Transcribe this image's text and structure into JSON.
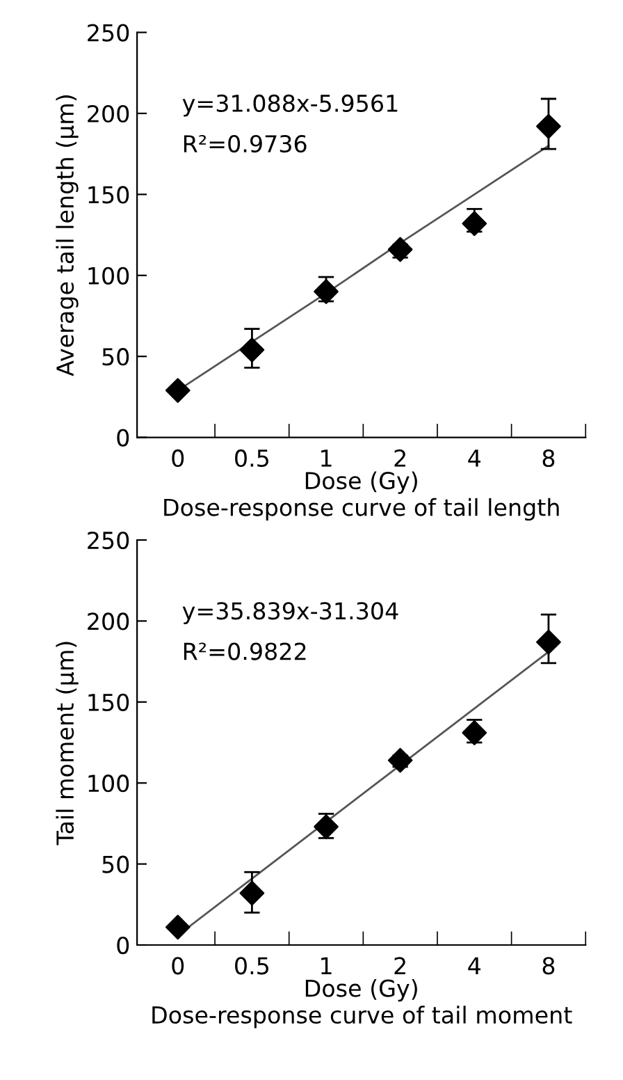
{
  "chart_data": [
    {
      "type": "scatter",
      "title": "Dose-response curve of tail length",
      "xlabel": "Dose (Gy)",
      "ylabel": "Average tail length (µm)",
      "categories": [
        "0",
        "0.5",
        "1",
        "2",
        "4",
        "8"
      ],
      "ylim": [
        0,
        250
      ],
      "yticks": [
        0,
        50,
        100,
        150,
        200,
        250
      ],
      "grid": false,
      "legend": false,
      "annotations": [
        "y=31.088x-5.9561",
        "R²=0.9736"
      ],
      "series": [
        {
          "type": "line",
          "color": "#555555",
          "line_style": "solid",
          "marker": "none",
          "values": [
            29,
            59,
            89,
            120,
            150,
            180
          ]
        },
        {
          "color": "#000000",
          "marker": "diamond",
          "values": [
            29,
            54,
            90,
            116,
            132,
            192
          ],
          "errors": [
            null,
            [
              43,
              67
            ],
            [
              84,
              99
            ],
            [
              111,
              119
            ],
            [
              127,
              141
            ],
            [
              178,
              209
            ]
          ]
        }
      ]
    },
    {
      "type": "scatter",
      "title": "Dose-response curve of tail moment",
      "xlabel": "Dose (Gy)",
      "ylabel": "Tail moment (µm)",
      "categories": [
        "0",
        "0.5",
        "1",
        "2",
        "4",
        "8"
      ],
      "ylim": [
        0,
        250
      ],
      "yticks": [
        0,
        50,
        100,
        150,
        200,
        250
      ],
      "grid": false,
      "legend": false,
      "annotations": [
        "y=35.839x-31.304",
        "R²=0.9822"
      ],
      "series": [
        {
          "type": "line",
          "color": "#555555",
          "line_style": "solid",
          "marker": "none",
          "values": [
            6,
            41,
            76,
            111,
            146,
            181
          ]
        },
        {
          "color": "#000000",
          "marker": "diamond",
          "values": [
            11,
            32,
            73,
            114,
            131,
            187
          ],
          "errors": [
            null,
            [
              20,
              45
            ],
            [
              66,
              81
            ],
            [
              110,
              117
            ],
            [
              125,
              139
            ],
            [
              174,
              204
            ]
          ]
        }
      ]
    }
  ]
}
